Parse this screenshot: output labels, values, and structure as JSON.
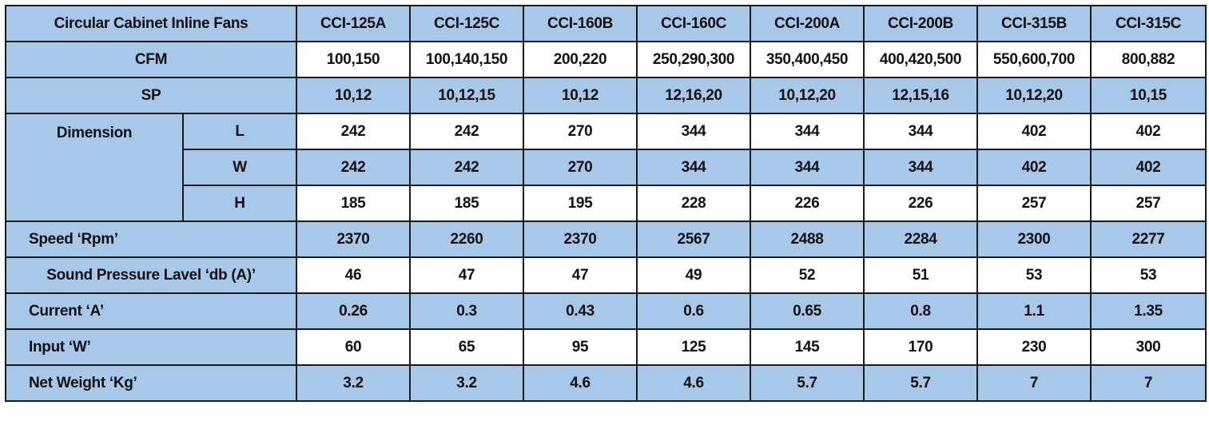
{
  "table": {
    "header_label": "Circular Cabinet Inline Fans",
    "models": [
      "CCI-125A",
      "CCI-125C",
      "CCI-160B",
      "CCI-160C",
      "CCI-200A",
      "CCI-200B",
      "CCI-315B",
      "CCI-315C"
    ],
    "cfm": {
      "label": "CFM",
      "values": [
        "100,150",
        "100,140,150",
        "200,220",
        "250,290,300",
        "350,400,450",
        "400,420,500",
        "550,600,700",
        "800,882"
      ]
    },
    "sp": {
      "label": "SP",
      "values": [
        "10,12",
        "10,12,15",
        "10,12",
        "12,16,20",
        "10,12,20",
        "12,15,16",
        "10,12,20",
        "10,15"
      ]
    },
    "dimension": {
      "label": "Dimension",
      "l": {
        "label": "L",
        "values": [
          "242",
          "242",
          "270",
          "344",
          "344",
          "344",
          "402",
          "402"
        ]
      },
      "w": {
        "label": "W",
        "values": [
          "242",
          "242",
          "270",
          "344",
          "344",
          "344",
          "402",
          "402"
        ]
      },
      "h": {
        "label": "H",
        "values": [
          "185",
          "185",
          "195",
          "228",
          "226",
          "226",
          "257",
          "257"
        ]
      }
    },
    "speed": {
      "label": "Speed ‘Rpm’",
      "values": [
        "2370",
        "2260",
        "2370",
        "2567",
        "2488",
        "2284",
        "2300",
        "2277"
      ]
    },
    "sound": {
      "label": "Sound Pressure Lavel ‘db (A)’",
      "values": [
        "46",
        "47",
        "47",
        "49",
        "52",
        "51",
        "53",
        "53"
      ]
    },
    "current": {
      "label": "Current ‘A’",
      "values": [
        "0.26",
        "0.3",
        "0.43",
        "0.6",
        "0.65",
        "0.8",
        "1.1",
        "1.35"
      ]
    },
    "input": {
      "label": "Input ‘W’",
      "values": [
        "60",
        "65",
        "95",
        "125",
        "145",
        "170",
        "230",
        "300"
      ]
    },
    "weight": {
      "label": "Net Weight ‘Kg’",
      "values": [
        "3.2",
        "3.2",
        "4.6",
        "4.6",
        "5.7",
        "5.7",
        "7",
        "7"
      ]
    }
  },
  "colors": {
    "row_blue": "#a8c8e9",
    "row_white": "#ffffff",
    "border": "#1a1a1a"
  }
}
